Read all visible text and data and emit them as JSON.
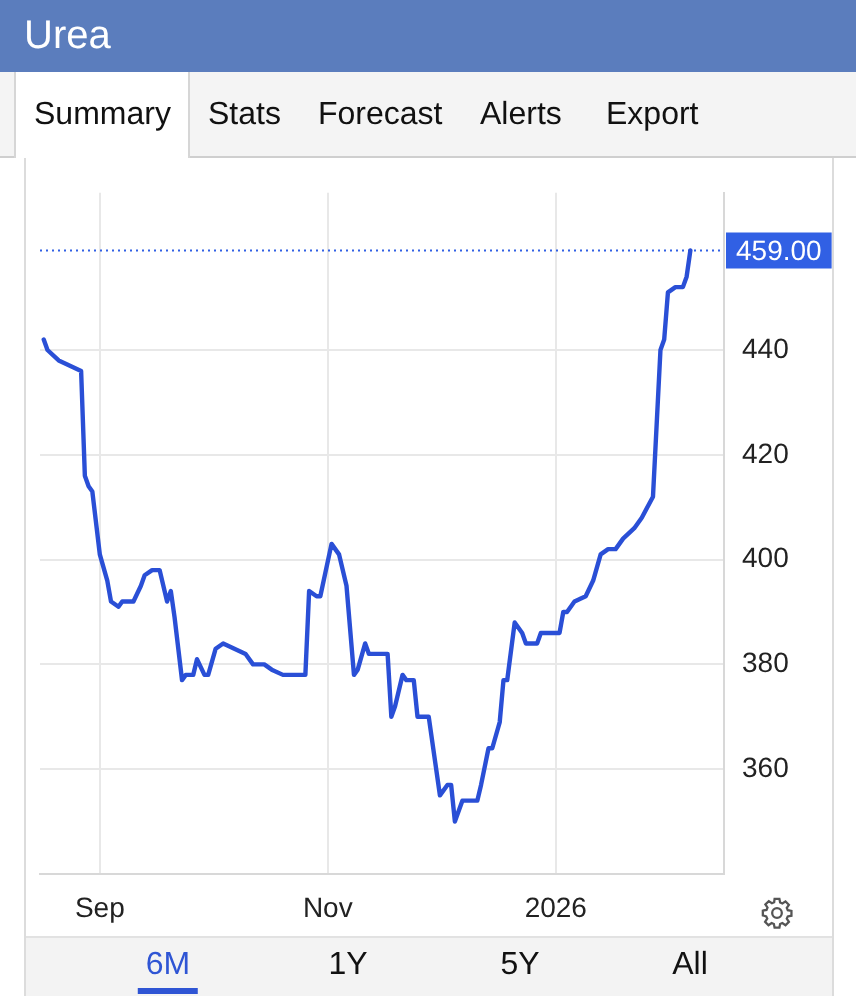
{
  "chart_data": {
    "type": "line",
    "title": "Urea",
    "annotations": [
      "Summary",
      "Stats",
      "Forecast",
      "Alerts",
      "Export",
      "6M",
      "1Y",
      "5Y",
      "All"
    ],
    "x": [
      "2025-08-17",
      "2025-08-18",
      "2025-08-21",
      "2025-08-27",
      "2025-08-28",
      "2025-08-29",
      "2025-08-30",
      "2025-09-01",
      "2025-09-03",
      "2025-09-04",
      "2025-09-06",
      "2025-09-07",
      "2025-09-10",
      "2025-09-12",
      "2025-09-13",
      "2025-09-15",
      "2025-09-17",
      "2025-09-19",
      "2025-09-20",
      "2025-09-21",
      "2025-09-23",
      "2025-09-24",
      "2025-09-26",
      "2025-09-27",
      "2025-09-29",
      "2025-09-30",
      "2025-10-02",
      "2025-10-04",
      "2025-10-07",
      "2025-10-10",
      "2025-10-12",
      "2025-10-15",
      "2025-10-17",
      "2025-10-20",
      "2025-10-23",
      "2025-10-26",
      "2025-10-27",
      "2025-10-29",
      "2025-10-30",
      "2025-11-02",
      "2025-11-04",
      "2025-11-06",
      "2025-11-08",
      "2025-11-09",
      "2025-11-11",
      "2025-11-12",
      "2025-11-17",
      "2025-11-18",
      "2025-11-19",
      "2025-11-21",
      "2025-11-22",
      "2025-11-24",
      "2025-11-25",
      "2025-11-28",
      "2025-12-01",
      "2025-12-03",
      "2025-12-04",
      "2025-12-05",
      "2025-12-07",
      "2025-12-09",
      "2025-12-11",
      "2025-12-12",
      "2025-12-14",
      "2025-12-15",
      "2025-12-17",
      "2025-12-18",
      "2025-12-19",
      "2025-12-21",
      "2025-12-23",
      "2025-12-24",
      "2025-12-27",
      "2025-12-28",
      "2026-01-02",
      "2026-01-03",
      "2026-01-04",
      "2026-01-06",
      "2026-01-09",
      "2026-01-11",
      "2026-01-13",
      "2026-01-15",
      "2026-01-17",
      "2026-01-19",
      "2026-01-22",
      "2026-01-24",
      "2026-01-27",
      "2026-01-29",
      "2026-01-30",
      "2026-01-31",
      "2026-02-02",
      "2026-02-04",
      "2026-02-05",
      "2026-02-06"
    ],
    "series": [
      {
        "color": "#2a4fd6",
        "values": [
          442,
          440,
          438,
          436,
          416,
          414,
          413,
          401,
          396,
          392,
          391,
          392,
          392,
          395,
          397,
          398,
          398,
          392,
          394,
          389,
          377,
          378,
          378,
          381,
          378,
          378,
          383,
          384,
          383,
          382,
          380,
          380,
          379,
          378,
          378,
          378,
          394,
          393,
          393,
          403,
          401,
          395,
          378,
          379,
          384,
          382,
          382,
          370,
          372,
          378,
          377,
          377,
          370,
          370,
          355,
          357,
          357,
          350,
          354,
          354,
          354,
          357,
          364,
          364,
          369,
          377,
          377,
          388,
          386,
          384,
          384,
          386,
          386,
          390,
          390,
          392,
          393,
          396,
          401,
          402,
          402,
          404,
          406,
          408,
          412,
          440,
          442,
          451,
          452,
          452,
          454,
          459
        ]
      }
    ],
    "xlim": [
      "2025-08-16",
      "2026-02-15"
    ],
    "xticks": [
      {
        "value": "2025-09-01",
        "label": "Sep"
      },
      {
        "value": "2025-11-01",
        "label": "Nov"
      },
      {
        "value": "2026-01-01",
        "label": "2026"
      }
    ],
    "ylim": [
      340,
      470
    ],
    "yticks": [
      360,
      380,
      400,
      420,
      440
    ],
    "grid": true,
    "marker": "none",
    "line_style": "solid",
    "ref_lines": [
      {
        "axis": "y",
        "value": 459,
        "label": "459.00",
        "color": "#3160e4",
        "line_style": "dotted"
      }
    ]
  }
}
